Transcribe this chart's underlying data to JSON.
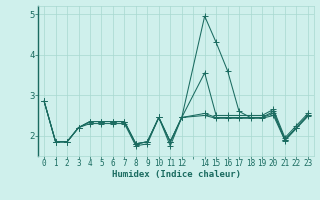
{
  "xlabel": "Humidex (Indice chaleur)",
  "bg_color": "#cff0ec",
  "grid_color": "#a8d8d0",
  "line_color": "#1a6b60",
  "x_values": [
    0,
    1,
    2,
    3,
    4,
    5,
    6,
    7,
    8,
    9,
    10,
    11,
    12,
    14,
    15,
    16,
    17,
    18,
    19,
    20,
    21,
    22,
    23
  ],
  "series": [
    [
      2.85,
      1.85,
      1.85,
      2.2,
      2.3,
      2.3,
      2.3,
      2.3,
      1.75,
      1.8,
      2.45,
      1.75,
      2.45,
      4.95,
      4.3,
      3.6,
      2.6,
      2.45,
      2.45,
      2.6,
      1.9,
      2.2,
      2.5
    ],
    [
      2.85,
      1.85,
      1.85,
      2.2,
      2.35,
      2.35,
      2.35,
      2.35,
      1.8,
      1.85,
      2.45,
      1.85,
      2.45,
      3.55,
      2.5,
      2.5,
      2.5,
      2.5,
      2.5,
      2.65,
      1.95,
      2.25,
      2.55
    ],
    [
      2.85,
      1.85,
      1.85,
      2.2,
      2.35,
      2.35,
      2.35,
      2.35,
      1.8,
      1.85,
      2.45,
      1.85,
      2.45,
      2.55,
      2.45,
      2.45,
      2.45,
      2.45,
      2.45,
      2.55,
      1.9,
      2.2,
      2.5
    ],
    [
      2.85,
      1.85,
      1.85,
      2.2,
      2.35,
      2.35,
      2.35,
      2.35,
      1.8,
      1.85,
      2.45,
      1.85,
      2.45,
      2.5,
      2.43,
      2.43,
      2.43,
      2.43,
      2.43,
      2.5,
      1.88,
      2.18,
      2.48
    ]
  ],
  "ylim": [
    1.5,
    5.2
  ],
  "yticks": [
    2,
    3,
    4,
    5
  ],
  "xtick_labels": [
    "0",
    "1",
    "2",
    "3",
    "4",
    "5",
    "6",
    "7",
    "8",
    "9",
    "10",
    "11",
    "12",
    "",
    "14",
    "15",
    "16",
    "17",
    "18",
    "19",
    "20",
    "21",
    "22",
    "23"
  ],
  "xtick_positions": [
    0,
    1,
    2,
    3,
    4,
    5,
    6,
    7,
    8,
    9,
    10,
    11,
    12,
    13,
    14,
    15,
    16,
    17,
    18,
    19,
    20,
    21,
    22,
    23
  ],
  "xlim": [
    -0.5,
    23.5
  ],
  "markersize": 2.0,
  "linewidth": 0.75,
  "font_color": "#1a6b60",
  "tick_fontsize": 5.5,
  "label_fontsize": 6.5
}
